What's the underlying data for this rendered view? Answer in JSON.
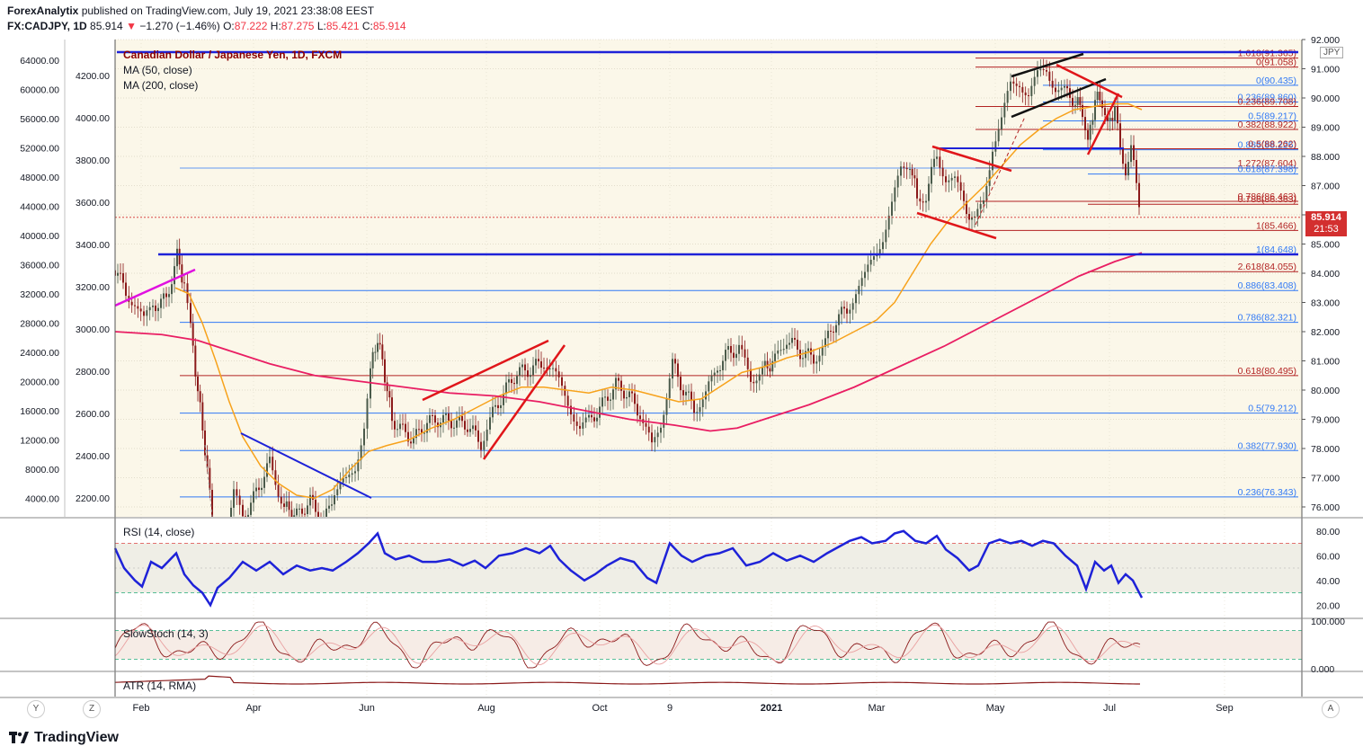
{
  "header": {
    "publisher": "ForexAnalytix",
    "published_on": "published on TradingView.com, July 19, 2021 23:38:08 EEST",
    "symbol": "FX:CADJPY, 1D",
    "last": "85.914",
    "change": "−1.270 (−1.46%)",
    "o_label": "O:",
    "o": "87.222",
    "h_label": "H:",
    "h": "87.275",
    "l_label": "L:",
    "l": "85.421",
    "c_label": "C:",
    "c": "85.914"
  },
  "legend": {
    "title": "Canadian Dollar / Japanese Yen, 1D, FXCM",
    "ma50": "MA (50, close)",
    "ma200": "MA (200, close)"
  },
  "indicators": {
    "rsi": "RSI (14, close)",
    "stoch": "SlowStoch (14, 3)",
    "atr": "ATR (14, RMA)"
  },
  "price_badge": {
    "price": "85.914",
    "countdown": "21:53",
    "currency": "JPY"
  },
  "footer": {
    "brand": "TradingView",
    "btn_left1": "Y",
    "btn_left2": "Z",
    "btn_right": "A"
  },
  "chart_data": {
    "type": "line",
    "right_axis": {
      "ticks": [
        "92.000",
        "91.000",
        "90.000",
        "89.000",
        "88.000",
        "87.000",
        "86.000",
        "85.000",
        "84.000",
        "83.000",
        "82.000",
        "81.000",
        "80.000",
        "79.000",
        "78.000",
        "77.000",
        "76.000"
      ],
      "ylim": [
        76,
        92
      ],
      "currency": "JPY"
    },
    "left_axis_outer": {
      "ticks": [
        "64000.00",
        "60000.00",
        "56000.00",
        "52000.00",
        "48000.00",
        "44000.00",
        "40000.00",
        "36000.00",
        "32000.00",
        "28000.00",
        "24000.00",
        "20000.00",
        "16000.00",
        "12000.00",
        "8000.00",
        "4000.00"
      ]
    },
    "left_axis_inner": {
      "ticks": [
        "4200.00",
        "4000.00",
        "3800.00",
        "3600.00",
        "3400.00",
        "3200.00",
        "3000.00",
        "2800.00",
        "2600.00",
        "2400.00",
        "2200.00"
      ]
    },
    "rsi_axis": {
      "ticks": [
        "80.00",
        "60.00",
        "40.00",
        "20.00"
      ]
    },
    "stoch_axis": {
      "ticks": [
        "100.000",
        "0.000"
      ]
    },
    "x_labels": [
      "Feb",
      "Apr",
      "Jun",
      "Aug",
      "Oct",
      "9",
      "2021",
      "Mar",
      "May",
      "Jul",
      "Sep"
    ],
    "fib_levels": [
      {
        "label": "1.618(91.365)",
        "value": 91.365
      },
      {
        "label": "0(91.058)",
        "value": 91.058
      },
      {
        "label": "0(90.435)",
        "value": 90.435
      },
      {
        "label": "0.236(89.860)",
        "value": 89.86
      },
      {
        "label": "0.236(89.708)",
        "value": 89.708
      },
      {
        "label": "0.5(89.217)",
        "value": 89.217
      },
      {
        "label": "0.382(88.922)",
        "value": 88.922
      },
      {
        "label": "0.886(88.226)",
        "value": 88.226
      },
      {
        "label": "0.5(88.262)",
        "value": 88.262
      },
      {
        "label": "1.272(87.604)",
        "value": 87.604
      },
      {
        "label": "0.618(87.398)",
        "value": 87.398
      },
      {
        "label": "0.786(86.463)",
        "value": 86.463
      },
      {
        "label": "0.786(86.363)",
        "value": 86.363
      },
      {
        "label": "1(85.466)",
        "value": 85.466
      },
      {
        "label": "1(84.648)",
        "value": 84.648
      },
      {
        "label": "2.618(84.055)",
        "value": 84.055
      },
      {
        "label": "0.886(83.408)",
        "value": 83.408
      },
      {
        "label": "0.786(82.321)",
        "value": 82.321
      },
      {
        "label": "0.618(80.495)",
        "value": 80.495
      },
      {
        "label": "0.5(79.212)",
        "value": 79.212
      },
      {
        "label": "0.382(77.930)",
        "value": 77.93
      },
      {
        "label": "0.236(76.343)",
        "value": 76.343
      }
    ],
    "last_price": 85.914,
    "colors": {
      "price_line": "#131722",
      "ma50": "#f7a21b",
      "ma200": "#e91e63",
      "rsi": "#1e22d8",
      "fib_red": "#b22222",
      "fib_blue": "#3179f5",
      "panel_bg": "#fbf7e9"
    }
  }
}
